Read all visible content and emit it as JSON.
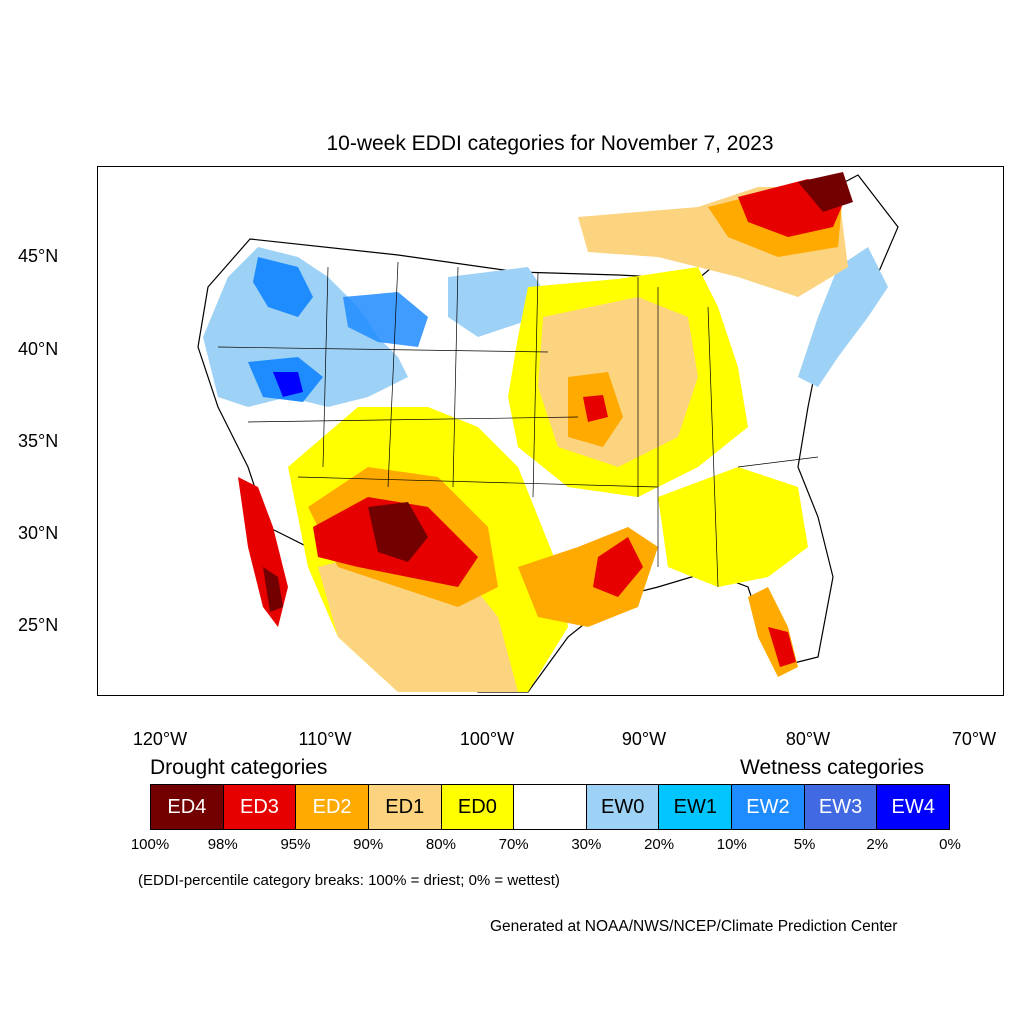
{
  "title": "10-week EDDI categories for November 7, 2023",
  "lat_labels": [
    "45°N",
    "40°N",
    "35°N",
    "30°N",
    "25°N"
  ],
  "lon_labels": [
    "120°W",
    "110°W",
    "100°W",
    "90°W",
    "80°W",
    "70°W"
  ],
  "legend": {
    "drought_heading": "Drought categories",
    "wetness_heading": "Wetness categories",
    "categories": [
      {
        "label": "ED4",
        "color": "#730000",
        "text_color": "#ffffff"
      },
      {
        "label": "ED3",
        "color": "#e60000",
        "text_color": "#ffffff"
      },
      {
        "label": "ED2",
        "color": "#ffaa00",
        "text_color": "#ffffff"
      },
      {
        "label": "ED1",
        "color": "#fcd37f",
        "text_color": "#000000"
      },
      {
        "label": "ED0",
        "color": "#ffff00",
        "text_color": "#000000"
      },
      {
        "label": "",
        "color": "#ffffff",
        "text_color": "#000000"
      },
      {
        "label": "EW0",
        "color": "#9dd1f5",
        "text_color": "#000000"
      },
      {
        "label": "EW1",
        "color": "#00c5ff",
        "text_color": "#000000"
      },
      {
        "label": "EW2",
        "color": "#1e8cff",
        "text_color": "#ffffff"
      },
      {
        "label": "EW3",
        "color": "#4169e1",
        "text_color": "#ffffff"
      },
      {
        "label": "EW4",
        "color": "#0000ff",
        "text_color": "#ffffff"
      }
    ],
    "breaks": [
      "100%",
      "98%",
      "95%",
      "90%",
      "80%",
      "70%",
      "30%",
      "20%",
      "10%",
      "5%",
      "2%",
      "0%"
    ]
  },
  "breaks_note": "(EDDI-percentile category breaks: 100% = driest; 0% = wettest)",
  "credit": "Generated at NOAA/NWS/NCEP/Climate Prediction Center"
}
